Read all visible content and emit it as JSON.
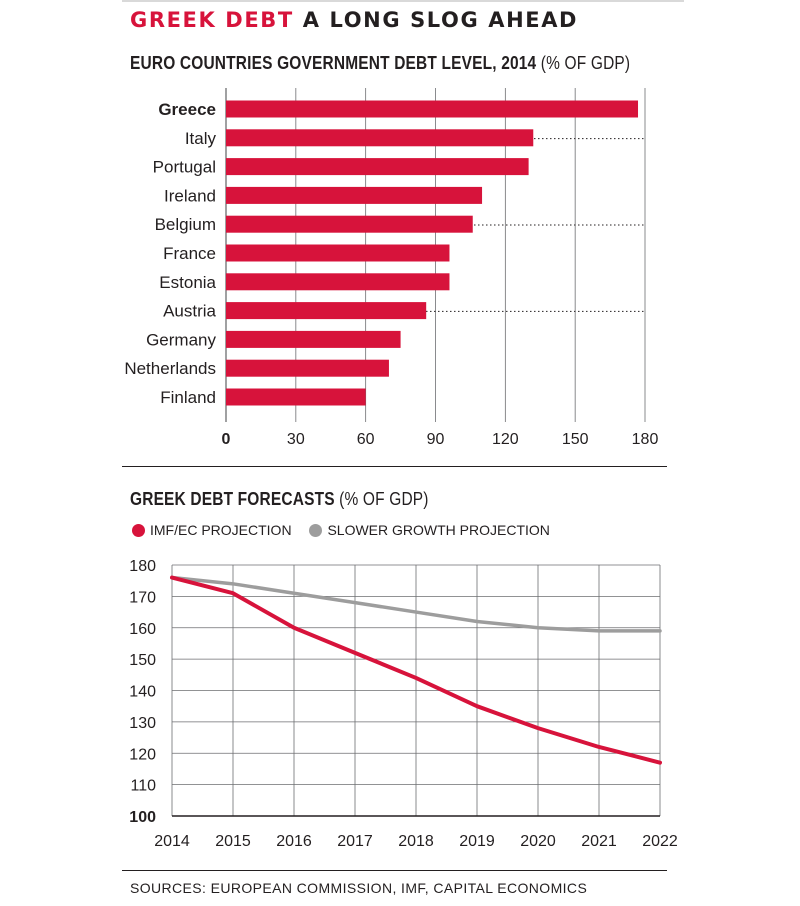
{
  "header": {
    "title_red": "GREEK DEBT",
    "title_rest": " A LONG SLOG AHEAD"
  },
  "colors": {
    "accent": "#d7133b",
    "secondary": "#9d9d9d",
    "text": "#231f20"
  },
  "chart_data": [
    {
      "type": "bar",
      "orientation": "horizontal",
      "title": "EURO COUNTRIES GOVERNMENT DEBT LEVEL, 2014",
      "title_suffix": " (% OF GDP)",
      "categories": [
        "Greece",
        "Italy",
        "Portugal",
        "Ireland",
        "Belgium",
        "France",
        "Estonia",
        "Austria",
        "Germany",
        "Netherlands",
        "Finland"
      ],
      "values": [
        177,
        132,
        130,
        110,
        106,
        96,
        96,
        86,
        75,
        70,
        60
      ],
      "highlight": "Greece",
      "xlim": [
        0,
        180
      ],
      "xticks": [
        "0",
        "30",
        "60",
        "90",
        "120",
        "150",
        "180"
      ],
      "grid": "vertical"
    },
    {
      "type": "line",
      "title": "GREEK DEBT FORECASTS",
      "title_suffix": " (% OF GDP)",
      "x": [
        "2014",
        "2015",
        "2016",
        "2017",
        "2018",
        "2019",
        "2020",
        "2021",
        "2022"
      ],
      "ylim": [
        100,
        180
      ],
      "yticks": [
        "180",
        "170",
        "160",
        "150",
        "140",
        "130",
        "120",
        "110",
        "100"
      ],
      "grid": "both",
      "legend_position": "top-left",
      "series": [
        {
          "name": "IMF/EC PROJECTION",
          "color": "#d7133b",
          "values": [
            176,
            171,
            160,
            152,
            144,
            135,
            128,
            122,
            117
          ]
        },
        {
          "name": "SLOWER GROWTH PROJECTION",
          "color": "#9d9d9d",
          "values": [
            176,
            174,
            171,
            168,
            165,
            162,
            160,
            159,
            159
          ]
        }
      ]
    }
  ],
  "footer": {
    "source": "SOURCES: EUROPEAN COMMISSION, IMF, CAPITAL ECONOMICS"
  }
}
